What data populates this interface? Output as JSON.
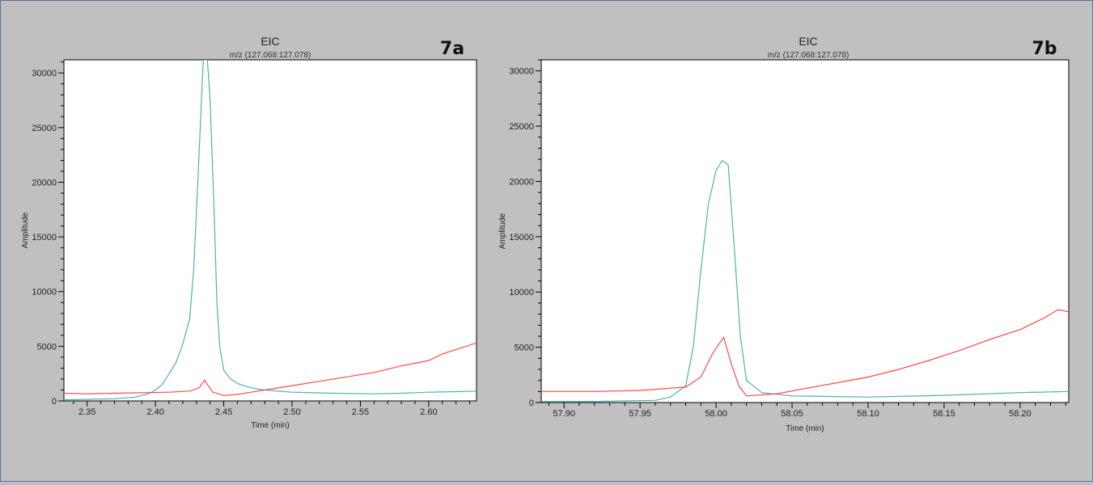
{
  "chart_data": [
    {
      "type": "line",
      "panel_label": "7a",
      "title": "EIC",
      "subtitle": "m/z (127.068:127.078)",
      "xlabel": "Time (min)",
      "ylabel": "Amplitude",
      "xlim": [
        2.333,
        2.635
      ],
      "ylim": [
        0,
        31200
      ],
      "xticks": [
        "2.35",
        "2.40",
        "2.45",
        "2.50",
        "2.55",
        "2.60"
      ],
      "xtick_values": [
        2.35,
        2.4,
        2.45,
        2.5,
        2.55,
        2.6
      ],
      "yticks": [
        "0",
        "5000",
        "10000",
        "15000",
        "20000",
        "25000",
        "30000"
      ],
      "ytick_values": [
        0,
        5000,
        10000,
        15000,
        20000,
        25000,
        30000
      ],
      "series": [
        {
          "color": "#4db3a6",
          "points": [
            [
              2.333,
              100
            ],
            [
              2.35,
              150
            ],
            [
              2.37,
              200
            ],
            [
              2.385,
              350
            ],
            [
              2.395,
              650
            ],
            [
              2.4,
              1000
            ],
            [
              2.405,
              1500
            ],
            [
              2.41,
              2500
            ],
            [
              2.415,
              3500
            ],
            [
              2.42,
              5200
            ],
            [
              2.425,
              7500
            ],
            [
              2.428,
              12000
            ],
            [
              2.431,
              20000
            ],
            [
              2.434,
              28500
            ],
            [
              2.435,
              31200
            ],
            [
              2.438,
              31200
            ],
            [
              2.44,
              27500
            ],
            [
              2.443,
              17000
            ],
            [
              2.445,
              9000
            ],
            [
              2.447,
              5000
            ],
            [
              2.45,
              2800
            ],
            [
              2.455,
              2000
            ],
            [
              2.46,
              1600
            ],
            [
              2.47,
              1200
            ],
            [
              2.48,
              1000
            ],
            [
              2.5,
              800
            ],
            [
              2.53,
              700
            ],
            [
              2.56,
              650
            ],
            [
              2.58,
              700
            ],
            [
              2.6,
              800
            ],
            [
              2.62,
              850
            ],
            [
              2.635,
              900
            ]
          ]
        },
        {
          "color": "#ff4848",
          "points": [
            [
              2.333,
              700
            ],
            [
              2.35,
              650
            ],
            [
              2.37,
              700
            ],
            [
              2.39,
              750
            ],
            [
              2.41,
              800
            ],
            [
              2.425,
              900
            ],
            [
              2.432,
              1200
            ],
            [
              2.436,
              1900
            ],
            [
              2.438,
              1500
            ],
            [
              2.442,
              800
            ],
            [
              2.45,
              500
            ],
            [
              2.46,
              600
            ],
            [
              2.47,
              800
            ],
            [
              2.48,
              1000
            ],
            [
              2.5,
              1400
            ],
            [
              2.52,
              1800
            ],
            [
              2.54,
              2200
            ],
            [
              2.56,
              2600
            ],
            [
              2.58,
              3200
            ],
            [
              2.6,
              3700
            ],
            [
              2.61,
              4300
            ],
            [
              2.62,
              4700
            ],
            [
              2.635,
              5300
            ]
          ]
        }
      ]
    },
    {
      "type": "line",
      "panel_label": "7b",
      "title": "EIC",
      "subtitle": "m/z (127.068:127.078)",
      "xlabel": "Time (min)",
      "ylabel": "Amplitude",
      "xlim": [
        57.885,
        58.232
      ],
      "ylim": [
        0,
        31000
      ],
      "xticks": [
        "57.90",
        "57.95",
        "58.00",
        "58.05",
        "58.10",
        "58.15",
        "58.20"
      ],
      "xtick_values": [
        57.9,
        57.95,
        58.0,
        58.05,
        58.1,
        58.15,
        58.2
      ],
      "yticks": [
        "0",
        "5000",
        "10000",
        "15000",
        "20000",
        "25000",
        "30000"
      ],
      "ytick_values": [
        0,
        5000,
        10000,
        15000,
        20000,
        25000,
        30000
      ],
      "series": [
        {
          "color": "#4db3a6",
          "points": [
            [
              57.885,
              100
            ],
            [
              57.92,
              100
            ],
            [
              57.96,
              200
            ],
            [
              57.97,
              500
            ],
            [
              57.98,
              1500
            ],
            [
              57.985,
              5000
            ],
            [
              57.99,
              12000
            ],
            [
              57.995,
              18000
            ],
            [
              58.0,
              21000
            ],
            [
              58.004,
              21900
            ],
            [
              58.008,
              21500
            ],
            [
              58.012,
              14000
            ],
            [
              58.016,
              6000
            ],
            [
              58.02,
              2000
            ],
            [
              58.03,
              900
            ],
            [
              58.05,
              600
            ],
            [
              58.1,
              500
            ],
            [
              58.15,
              650
            ],
            [
              58.2,
              900
            ],
            [
              58.232,
              1000
            ]
          ]
        },
        {
          "color": "#ff4848",
          "points": [
            [
              57.885,
              1000
            ],
            [
              57.92,
              1000
            ],
            [
              57.95,
              1100
            ],
            [
              57.97,
              1300
            ],
            [
              57.98,
              1400
            ],
            [
              57.99,
              2300
            ],
            [
              57.998,
              4500
            ],
            [
              58.005,
              5900
            ],
            [
              58.01,
              3500
            ],
            [
              58.015,
              1500
            ],
            [
              58.02,
              600
            ],
            [
              58.04,
              800
            ],
            [
              58.06,
              1300
            ],
            [
              58.08,
              1800
            ],
            [
              58.1,
              2300
            ],
            [
              58.12,
              3000
            ],
            [
              58.14,
              3800
            ],
            [
              58.16,
              4700
            ],
            [
              58.18,
              5700
            ],
            [
              58.2,
              6600
            ],
            [
              58.215,
              7600
            ],
            [
              58.225,
              8400
            ],
            [
              58.232,
              8200
            ]
          ]
        }
      ]
    }
  ]
}
